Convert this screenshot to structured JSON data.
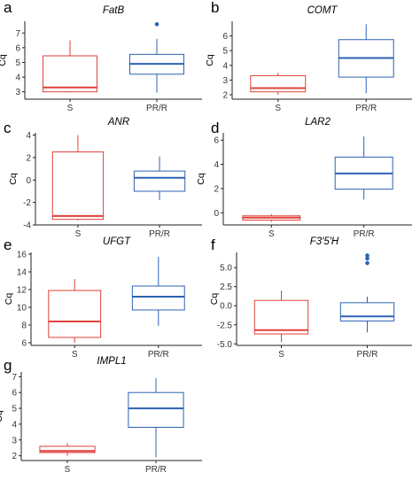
{
  "colors": {
    "s": "#e0413a",
    "prr": "#2c62b4",
    "axis": "#222222"
  },
  "chart_data": [
    {
      "type": "box",
      "panel": "a",
      "title": "FatB",
      "ylabel": "Cq",
      "categories": [
        "S",
        "PR/R"
      ],
      "ylim": [
        2.5,
        7.8
      ],
      "yticks": [
        3,
        4,
        5,
        6,
        7
      ],
      "boxes": [
        {
          "min": 2.95,
          "q1": 3.0,
          "median": 3.3,
          "q3": 5.45,
          "max": 6.5,
          "outliers": []
        },
        {
          "min": 2.95,
          "q1": 4.2,
          "median": 4.9,
          "q3": 5.55,
          "max": 6.6,
          "outliers": [
            7.6
          ]
        }
      ]
    },
    {
      "type": "box",
      "panel": "b",
      "title": "COMT",
      "ylabel": "Cq",
      "categories": [
        "S",
        "PR/R"
      ],
      "ylim": [
        1.7,
        7.0
      ],
      "yticks": [
        2,
        3,
        4,
        5,
        6
      ],
      "boxes": [
        {
          "min": 2.0,
          "q1": 2.2,
          "median": 2.45,
          "q3": 3.3,
          "max": 3.5,
          "outliers": []
        },
        {
          "min": 2.1,
          "q1": 3.2,
          "median": 4.5,
          "q3": 5.75,
          "max": 6.8,
          "outliers": []
        }
      ]
    },
    {
      "type": "box",
      "panel": "c",
      "title": "ANR",
      "ylabel": "Cq",
      "categories": [
        "S",
        "PR/R"
      ],
      "ylim": [
        -4.0,
        4.2
      ],
      "yticks": [
        -4,
        -2,
        0,
        2,
        4
      ],
      "boxes": [
        {
          "min": -3.6,
          "q1": -3.5,
          "median": -3.2,
          "q3": 2.5,
          "max": 4.0,
          "outliers": []
        },
        {
          "min": -1.8,
          "q1": -1.0,
          "median": 0.2,
          "q3": 0.8,
          "max": 2.1,
          "outliers": []
        }
      ]
    },
    {
      "type": "box",
      "panel": "d",
      "title": "LAR2",
      "ylabel": "Cq",
      "categories": [
        "S",
        "PR/R"
      ],
      "ylim": [
        -1.0,
        6.6
      ],
      "yticks": [
        0,
        2,
        4,
        6
      ],
      "boxes": [
        {
          "min": -0.75,
          "q1": -0.6,
          "median": -0.4,
          "q3": -0.25,
          "max": -0.1,
          "outliers": []
        },
        {
          "min": 1.1,
          "q1": 1.95,
          "median": 3.25,
          "q3": 4.6,
          "max": 6.3,
          "outliers": []
        }
      ]
    },
    {
      "type": "box",
      "panel": "e",
      "title": "UFGT",
      "ylabel": "Cq",
      "categories": [
        "S",
        "PR/R"
      ],
      "ylim": [
        5.7,
        16.2
      ],
      "yticks": [
        6,
        8,
        10,
        12,
        14,
        16
      ],
      "boxes": [
        {
          "min": 6.0,
          "q1": 6.6,
          "median": 8.4,
          "q3": 11.9,
          "max": 13.2,
          "outliers": []
        },
        {
          "min": 7.9,
          "q1": 9.7,
          "median": 11.2,
          "q3": 12.4,
          "max": 15.7,
          "outliers": []
        }
      ]
    },
    {
      "type": "box",
      "panel": "f",
      "title": "F3′5′H",
      "ylabel": "Cq",
      "categories": [
        "S",
        "PR/R"
      ],
      "ylim": [
        -5.2,
        7.0
      ],
      "yticks": [
        -5.0,
        -2.5,
        0.0,
        2.5,
        5.0
      ],
      "ytick_labels": [
        "-5.0",
        "-2.5",
        "0.0",
        "2.5",
        "5.0"
      ],
      "boxes": [
        {
          "min": -4.8,
          "q1": -3.7,
          "median": -3.2,
          "q3": 0.7,
          "max": 2.0,
          "outliers": []
        },
        {
          "min": -3.5,
          "q1": -2.0,
          "median": -1.4,
          "q3": 0.4,
          "max": 1.2,
          "outliers": [
            5.6,
            6.2,
            6.6
          ]
        }
      ]
    },
    {
      "type": "box",
      "panel": "g",
      "title": "IMPL1",
      "ylabel": "Cq",
      "categories": [
        "S",
        "PR/R"
      ],
      "ylim": [
        1.7,
        7.3
      ],
      "yticks": [
        2,
        3,
        4,
        5,
        6,
        7
      ],
      "boxes": [
        {
          "min": 2.0,
          "q1": 2.2,
          "median": 2.3,
          "q3": 2.6,
          "max": 2.8,
          "outliers": []
        },
        {
          "min": 1.9,
          "q1": 3.8,
          "median": 5.0,
          "q3": 6.0,
          "max": 6.9,
          "outliers": []
        }
      ]
    }
  ]
}
